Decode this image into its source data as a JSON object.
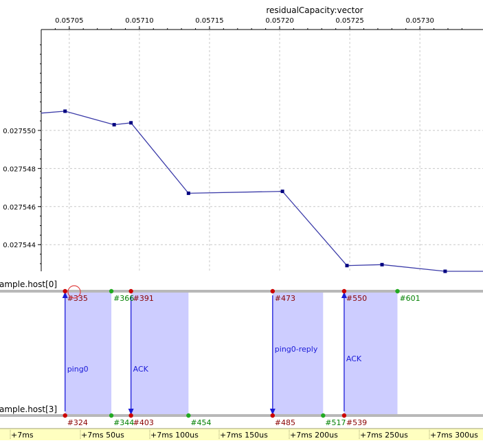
{
  "chart_data": {
    "type": "line",
    "title": "residualCapacity:vector",
    "xlabel": "",
    "ylabel": "",
    "x_ticks": [
      "0.05705",
      "0.05710",
      "0.05715",
      "0.05720",
      "0.05725",
      "0.05730"
    ],
    "y_ticks": [
      "0.027550",
      "0.027548",
      "0.027546",
      "0.027544"
    ],
    "xlim": [
      0.05703,
      0.057345
    ],
    "ylim": [
      0.0275426,
      0.0275553
    ],
    "grid": true,
    "series": [
      {
        "x": [
          0.05703,
          0.057047,
          0.057082,
          0.057094,
          0.057135,
          0.057202,
          0.057248,
          0.057273,
          0.057318,
          0.057345
        ],
        "y": [
          0.02755091,
          0.02755101,
          0.0275503,
          0.0275504,
          0.0275467,
          0.0275468,
          0.0275429,
          0.02754295,
          0.0275426,
          0.0275426
        ],
        "markers": [
          false,
          true,
          true,
          true,
          true,
          true,
          true,
          true,
          true,
          false
        ]
      }
    ]
  },
  "sequence": {
    "hosts": [
      {
        "label": "ample.host[0]"
      },
      {
        "label": "ample.host[3]"
      }
    ],
    "top_events": [
      {
        "label": "#335",
        "color": "red",
        "x": 0.057047
      },
      {
        "label": "#366",
        "color": "green",
        "x": 0.05708
      },
      {
        "label": "#391",
        "color": "red",
        "x": 0.057094
      },
      {
        "label": "#473",
        "color": "red",
        "x": 0.057195
      },
      {
        "label": "#550",
        "color": "red",
        "x": 0.057246
      },
      {
        "label": "#601",
        "color": "green",
        "x": 0.057284
      }
    ],
    "bottom_events": [
      {
        "label": "#324",
        "color": "red",
        "x": 0.057047
      },
      {
        "label": "#344",
        "color": "green",
        "x": 0.05708
      },
      {
        "label": "#403",
        "color": "red",
        "x": 0.057094
      },
      {
        "label": "#454",
        "color": "green",
        "x": 0.057135
      },
      {
        "label": "#485",
        "color": "red",
        "x": 0.057195
      },
      {
        "label": "#517",
        "color": "green",
        "x": 0.057231
      },
      {
        "label": "#539",
        "color": "red",
        "x": 0.057246
      }
    ],
    "messages": [
      {
        "label": "ping0",
        "direction": "up"
      },
      {
        "label": "ACK",
        "direction": "down"
      },
      {
        "label": "ping0-reply",
        "direction": "down"
      },
      {
        "label": "ACK",
        "direction": "up"
      }
    ],
    "colors": {
      "message_band": "#c8c8ff",
      "arrow": "#1a1ad8",
      "event_red": "#cc0000",
      "event_green": "#22aa22",
      "label_red": "#8a0000",
      "label_green": "#008000"
    }
  },
  "timeline": {
    "labels": [
      "+7ms",
      "+7ms 50us",
      "+7ms 100us",
      "+7ms 150us",
      "+7ms 200us",
      "+7ms 250us",
      "+7ms 300us"
    ],
    "background": "#ffffc0"
  }
}
